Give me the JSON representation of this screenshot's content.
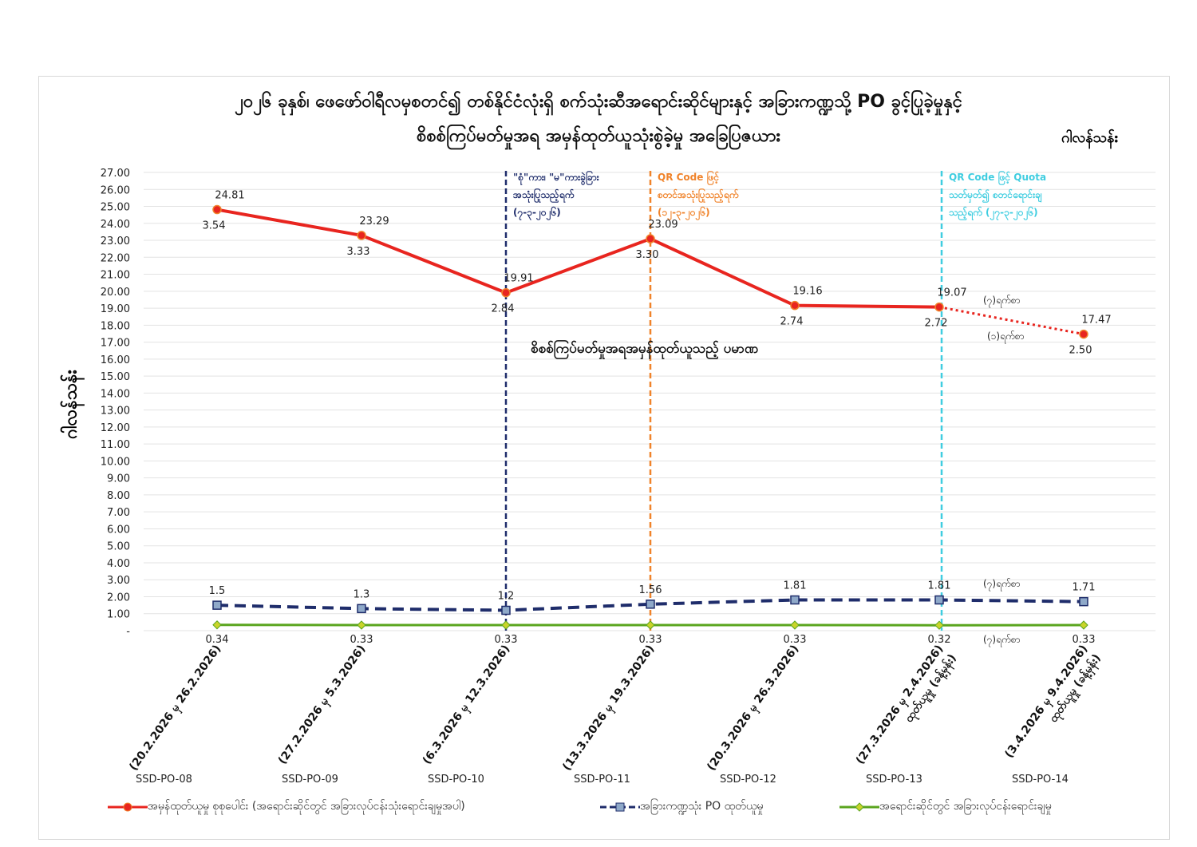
{
  "chart_data": {
    "type": "line",
    "title": [
      "၂၀၂၆ ခုနှစ်၊ ဖေဖော်ဝါရီလမှစတင်၍ တစ်နိုင်ငံလုံးရှိ စက်သုံးဆီအရောင်းဆိုင်များနှင့် အခြားကဏ္ဍသို့ PO ခွင့်ပြုခဲ့မှုနှင့်",
      "စိစစ်ကြပ်မတ်မှုအရ အမှန်ထုတ်ယူသုံးစွဲခဲ့မှု အခြေပြဇယား"
    ],
    "unit": "ဂါလန်သန်း",
    "ylabel": "ဂါလန်သန်း",
    "ylim": [
      0,
      27
    ],
    "yticks": [
      "-",
      "1.00",
      "2.00",
      "3.00",
      "4.00",
      "5.00",
      "6.00",
      "7.00",
      "8.00",
      "9.00",
      "10.00",
      "11.00",
      "12.00",
      "13.00",
      "14.00",
      "15.00",
      "16.00",
      "17.00",
      "18.00",
      "19.00",
      "20.00",
      "21.00",
      "22.00",
      "23.00",
      "24.00",
      "25.00",
      "26.00",
      "27.00"
    ],
    "grid": true,
    "legend_placement": "bottom",
    "categories": [
      "(20.2.2026 မှ 26.2.2026)",
      "(27.2.2026 မှ 5.3.2026)",
      "(6.3.2026 မှ 12.3.2026)",
      "(13.3.2026 မှ 19.3.2026)",
      "(20.3.2026 မှ 26.3.2026)",
      "(27.3.2026 မှ 2.4.2026) ထုတ်ယူမှု (ခန့်မှန်း)",
      "(3.4.2026 မှ 9.4.2026) ထုတ်ယူမှု (ခန့်မှန်း)"
    ],
    "codes": [
      "SSD-PO-08",
      "SSD-PO-09",
      "SSD-PO-10",
      "SSD-PO-11",
      "SSD-PO-12",
      "SSD-PO-13",
      "SSD-PO-14"
    ],
    "series": [
      {
        "name": "အမှန်ထုတ်ယူမှု စုစုပေါင်း (အရောင်းဆိုင်တွင် အခြားလုပ်ငန်းသုံးရောင်းချမှုအပါ)",
        "color": "#e8251f",
        "values": [
          24.81,
          23.29,
          19.91,
          23.09,
          19.16,
          19.07,
          17.47
        ],
        "labels": [
          "24.81",
          "23.29",
          "19.91",
          "23.09",
          "19.16",
          "19.07",
          "17.47"
        ],
        "secondary_labels": [
          "3.54",
          "3.33",
          "2.84",
          "3.30",
          "2.74",
          "2.72",
          "2.50"
        ]
      },
      {
        "name": "အခြားကဏ္ဍသုံး PO ထုတ်ယူမှု",
        "color": "#1f2d6b",
        "values": [
          1.5,
          1.3,
          1.2,
          1.56,
          1.81,
          1.81,
          1.71
        ],
        "labels": [
          "1.5",
          "1.3",
          "1.2",
          "1.56",
          "1.81",
          "1.81",
          "1.71"
        ]
      },
      {
        "name": "အရောင်းဆိုင်တွင် အခြားလုပ်ငန်းရောင်းချမှု",
        "color": "#5aa51e",
        "values": [
          0.34,
          0.33,
          0.33,
          0.33,
          0.33,
          0.32,
          0.33
        ],
        "labels": [
          "0.34",
          "0.33",
          "0.33",
          "0.33",
          "0.33",
          "0.32",
          "0.33"
        ]
      }
    ],
    "markers": [
      {
        "after_category": 2,
        "color": "#1f2d6b",
        "lines": [
          "\"စုံ\"ကား၊ \"မ\"ကားခွဲခြား",
          "အသုံးပြုသည့်ရက်",
          "(၇-၃-၂၀၂၆)"
        ]
      },
      {
        "after_category": 3,
        "color": "#f0832a",
        "lines": [
          "QR Code ဖြင့်",
          "စတင်အသုံးပြုသည့်ရက်",
          "(၁၂-၃-၂၀၂၆)"
        ]
      },
      {
        "after_category": 5,
        "color": "#3fcde0",
        "lines": [
          "QR Code ဖြင့် Quota",
          "သတ်မှတ်၍ စတင်ရောင်းချ",
          "သည့်ရက် (၂၇-၃-၂၀၂၆)"
        ]
      }
    ],
    "annotations": {
      "middle": "စိစစ်ကြပ်မတ်မှုအရအမှန်ထုတ်ယူသည့် ပမာဏ",
      "days7_red": "(၇)ရက်စာ",
      "days1_red": "(၁)ရက်စာ",
      "days7_blue": "(၇)ရက်စာ",
      "days7_green": "(၇)ရက်စာ"
    }
  }
}
